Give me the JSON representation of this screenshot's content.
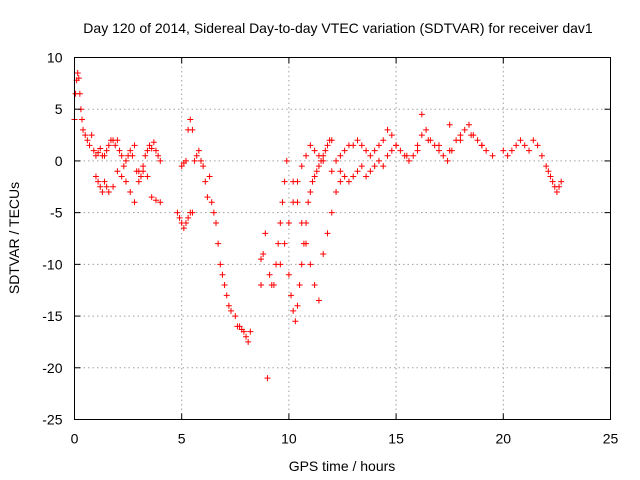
{
  "chart_data": {
    "type": "scatter",
    "title": "Day 120 of 2014, Sidereal Day-to-day VTEC variation (SDTVAR) for receiver dav1",
    "xlabel": "GPS time / hours",
    "ylabel": "SDTVAR / TECUs",
    "xlim": [
      0,
      25
    ],
    "ylim": [
      -25,
      10
    ],
    "xticks": [
      "0",
      "5",
      "10",
      "15",
      "20",
      "25"
    ],
    "yticks": [
      "10",
      "5",
      "0",
      "-5",
      "-10",
      "-15",
      "-20",
      "-25"
    ],
    "grid": true,
    "marker": "+",
    "color": "#ff0000",
    "series": [
      {
        "name": "dav1",
        "x": [
          0.0,
          0.05,
          0.1,
          0.15,
          0.2,
          0.25,
          0.3,
          0.35,
          0.4,
          0.5,
          0.6,
          0.7,
          0.8,
          0.9,
          1.0,
          1.1,
          1.2,
          1.3,
          1.4,
          1.5,
          1.6,
          1.7,
          1.8,
          1.9,
          2.0,
          2.1,
          2.2,
          2.3,
          2.4,
          2.5,
          2.6,
          2.7,
          2.8,
          2.9,
          3.0,
          3.1,
          3.2,
          3.3,
          3.4,
          3.5,
          3.6,
          3.7,
          3.8,
          3.9,
          4.0,
          1.0,
          1.1,
          1.2,
          1.3,
          1.4,
          1.5,
          1.6,
          1.8,
          2.0,
          2.2,
          2.4,
          2.6,
          2.8,
          3.0,
          3.2,
          3.4,
          3.6,
          3.8,
          4.0,
          4.8,
          4.9,
          5.0,
          5.1,
          5.2,
          5.3,
          5.4,
          5.5,
          5.0,
          5.1,
          5.2,
          5.3,
          5.4,
          5.5,
          5.6,
          5.7,
          5.8,
          5.9,
          6.0,
          6.1,
          6.2,
          6.3,
          6.4,
          6.5,
          6.6,
          6.7,
          6.8,
          6.9,
          7.0,
          7.1,
          7.2,
          7.3,
          7.5,
          7.6,
          7.7,
          7.8,
          7.9,
          8.0,
          8.1,
          8.2,
          8.7,
          8.8,
          8.9,
          9.0,
          9.1,
          9.2,
          9.4,
          9.5,
          9.6,
          9.7,
          9.8,
          9.9,
          10.0,
          10.1,
          10.2,
          10.3,
          10.4,
          10.5,
          10.6,
          10.7,
          10.8,
          10.9,
          11.0,
          11.1,
          11.2,
          11.3,
          11.4,
          11.5,
          11.6,
          11.7,
          11.8,
          11.9,
          12.0,
          10.2,
          10.4,
          10.6,
          10.8,
          11.0,
          11.2,
          11.4,
          11.6,
          11.8,
          12.0,
          12.2,
          12.4,
          9.6,
          9.8,
          10.0,
          10.2,
          10.4,
          10.6,
          10.8,
          11.0,
          11.2,
          11.4,
          11.6,
          12.0,
          12.2,
          12.4,
          12.6,
          12.8,
          13.0,
          13.2,
          13.4,
          13.6,
          13.8,
          14.0,
          14.2,
          14.4,
          14.6,
          14.8,
          15.0,
          15.2,
          15.4,
          15.6,
          15.8,
          16.0,
          16.2,
          16.4,
          16.6,
          16.8,
          17.0,
          17.2,
          17.4,
          17.6,
          17.8,
          18.0,
          18.2,
          18.4,
          18.6,
          18.8,
          19.0,
          19.2,
          12.4,
          12.6,
          12.8,
          13.0,
          13.2,
          13.4,
          13.6,
          13.8,
          14.0,
          14.2,
          14.4,
          14.6,
          14.8,
          15.0,
          15.5,
          16.0,
          16.5,
          17.0,
          17.5,
          18.0,
          18.5,
          19.0,
          19.5,
          20.0,
          20.2,
          20.4,
          20.6,
          20.8,
          21.0,
          21.2,
          21.4,
          21.6,
          21.8,
          22.0,
          22.1,
          22.2,
          22.3,
          22.4,
          22.5,
          22.6,
          22.7,
          16.2,
          17.5,
          8.7,
          9.3
        ],
        "y": [
          4.0,
          6.5,
          7.8,
          8.5,
          8.0,
          6.5,
          5.0,
          4.0,
          3.0,
          2.5,
          2.0,
          1.5,
          2.5,
          1.0,
          0.5,
          0.8,
          1.2,
          0.5,
          0.5,
          1.0,
          1.5,
          2.0,
          2.0,
          1.5,
          2.0,
          1.0,
          0.5,
          -0.5,
          0.0,
          0.5,
          1.0,
          0.5,
          1.5,
          -1.0,
          -1.0,
          -1.5,
          -0.5,
          0.5,
          1.0,
          1.5,
          1.2,
          1.8,
          1.0,
          0.5,
          0.0,
          -1.5,
          -2.0,
          -2.5,
          -3.0,
          -2.0,
          -2.5,
          -3.0,
          -2.5,
          -1.0,
          -1.5,
          -2.0,
          -3.0,
          -4.0,
          -2.0,
          -1.0,
          -1.5,
          -3.5,
          -3.8,
          -4.0,
          -5.0,
          -5.5,
          -6.0,
          -6.5,
          -6.0,
          -5.5,
          -5.0,
          -5.0,
          -0.5,
          -0.2,
          0.0,
          3.0,
          4.0,
          3.0,
          0.0,
          0.5,
          1.0,
          0.0,
          -0.5,
          -2.0,
          -3.5,
          -1.5,
          -4.0,
          -5.0,
          -6.0,
          -8.0,
          -10.0,
          -11.0,
          -12.0,
          -13.0,
          -14.0,
          -14.5,
          -15.0,
          -16.0,
          -16.0,
          -16.3,
          -16.5,
          -17.0,
          -17.5,
          -16.5,
          -12.0,
          -9.0,
          -7.0,
          -21.0,
          -11.0,
          -12.0,
          -10.0,
          -8.0,
          -6.0,
          -4.0,
          -2.0,
          0.0,
          -11.0,
          -13.0,
          -14.5,
          -15.5,
          -14.0,
          -12.0,
          -10.0,
          -8.0,
          -6.0,
          -4.0,
          -3.0,
          -2.0,
          -1.5,
          -1.0,
          -0.5,
          0.0,
          0.5,
          1.0,
          1.5,
          2.0,
          2.0,
          -2.0,
          -4.0,
          -6.0,
          -8.0,
          -10.0,
          -12.0,
          -13.5,
          -9.0,
          -7.0,
          -5.0,
          -3.0,
          -2.0,
          -10.0,
          -8.0,
          -6.0,
          -4.0,
          -2.0,
          -0.5,
          0.5,
          1.5,
          1.0,
          0.5,
          0.0,
          -1.0,
          0.0,
          0.5,
          1.0,
          1.5,
          1.5,
          2.0,
          1.5,
          1.0,
          0.5,
          1.0,
          1.5,
          2.0,
          3.0,
          2.5,
          1.5,
          1.0,
          0.5,
          0.0,
          0.5,
          1.5,
          2.5,
          3.0,
          2.0,
          1.5,
          1.0,
          0.5,
          0.0,
          1.0,
          2.0,
          2.5,
          3.0,
          3.5,
          2.5,
          2.0,
          1.5,
          1.0,
          -1.0,
          -1.5,
          -2.0,
          -1.5,
          -1.0,
          -0.5,
          -1.5,
          -1.0,
          -0.5,
          0.0,
          -0.5,
          0.5,
          1.0,
          1.5,
          0.5,
          1.0,
          2.0,
          1.5,
          1.0,
          2.0,
          2.5,
          1.5,
          0.5,
          1.0,
          0.5,
          1.0,
          1.5,
          2.0,
          1.5,
          1.0,
          2.0,
          1.5,
          0.5,
          -0.5,
          -1.0,
          -1.5,
          -2.0,
          -2.5,
          -3.0,
          -2.5,
          -2.0,
          4.5,
          3.5,
          -9.5,
          -12.0
        ]
      }
    ]
  }
}
